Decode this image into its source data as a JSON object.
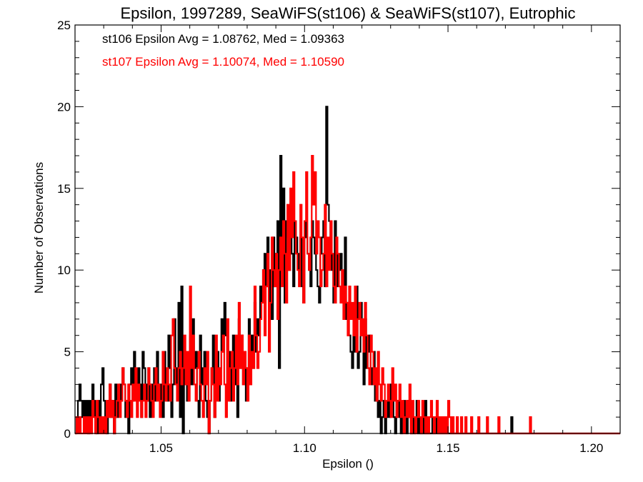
{
  "chart_data": {
    "type": "histogram-step",
    "title": "Epsilon, 1997289, SeaWiFS(st106) & SeaWiFS(st107), Eutrophic",
    "xlabel": "Epsilon ()",
    "ylabel": "Number of Observations",
    "xlim": [
      1.02,
      1.21
    ],
    "ylim": [
      0,
      25
    ],
    "xticks": [
      1.05,
      1.1,
      1.15,
      1.2
    ],
    "xtick_labels": [
      "1.05",
      "1.10",
      "1.15",
      "1.20"
    ],
    "yticks": [
      0,
      5,
      10,
      15,
      20,
      25
    ],
    "ytick_labels": [
      "0",
      "5",
      "10",
      "15",
      "20",
      "25"
    ],
    "grid": false,
    "legend_position": "top-left",
    "bin_start": 1.02,
    "bin_width": 0.0005,
    "series": [
      {
        "name": "st106",
        "label": "st106 Epsilon Avg = 1.08762, Med = 1.09363",
        "color": "#000000",
        "values": [
          0,
          1,
          2,
          3,
          2,
          1,
          2,
          1,
          2,
          0,
          2,
          1,
          3,
          2,
          1,
          0,
          2,
          1,
          3,
          4,
          2,
          1,
          0,
          2,
          3,
          1,
          2,
          0,
          3,
          1,
          2,
          3,
          2,
          4,
          3,
          1,
          2,
          0,
          3,
          4,
          2,
          5,
          3,
          2,
          4,
          3,
          1,
          5,
          4,
          3,
          2,
          4,
          1,
          3,
          2,
          4,
          2,
          5,
          3,
          2,
          3,
          1,
          5,
          3,
          2,
          6,
          4,
          1,
          3,
          7,
          4,
          3,
          8,
          1,
          9,
          0,
          4,
          5,
          2,
          3,
          6,
          3,
          7,
          4,
          5,
          2,
          1,
          6,
          3,
          4,
          5,
          2,
          1,
          0,
          2,
          4,
          6,
          1,
          3,
          5,
          2,
          4,
          7,
          5,
          8,
          6,
          3,
          5,
          2,
          4,
          6,
          3,
          5,
          1,
          7,
          4,
          6,
          3,
          5,
          2,
          4,
          7,
          5,
          6,
          4,
          8,
          5,
          7,
          6,
          9,
          8,
          10,
          11,
          9,
          12,
          8,
          10,
          7,
          12,
          9,
          11,
          13,
          4,
          17,
          10,
          15,
          8,
          13,
          12,
          10,
          14,
          11,
          9,
          13,
          12,
          11,
          10,
          12,
          9,
          8,
          13,
          12,
          11,
          10,
          9,
          13,
          12,
          11,
          10,
          9,
          8,
          11,
          12,
          13,
          9,
          20,
          14,
          13,
          12,
          10,
          8,
          13,
          11,
          9,
          10,
          11,
          8,
          9,
          12,
          7,
          8,
          6,
          5,
          4,
          6,
          5,
          9,
          4,
          5,
          8,
          6,
          3,
          7,
          4,
          5,
          6,
          3,
          4,
          5,
          2,
          3,
          1,
          2,
          0,
          1,
          2,
          0,
          1,
          2,
          1,
          3,
          2,
          1,
          0,
          2,
          1,
          2,
          0,
          1,
          2,
          1,
          0,
          2,
          1,
          0,
          1,
          0,
          1,
          2,
          0,
          1,
          0,
          1,
          0,
          2,
          0,
          1,
          0,
          0,
          1,
          0,
          1,
          0,
          0,
          1,
          0,
          0,
          0,
          0,
          0,
          0,
          0,
          0,
          0,
          0,
          0,
          0,
          0,
          0,
          0,
          0,
          0,
          0,
          0,
          0,
          0,
          0,
          0,
          0,
          0,
          0,
          0,
          0,
          0,
          0,
          0,
          0,
          0,
          0,
          0,
          0,
          0,
          0,
          0,
          0,
          0,
          0,
          0,
          0,
          0,
          0,
          0,
          0,
          0,
          1,
          0,
          0,
          0,
          0,
          0,
          0,
          0,
          0,
          0,
          0,
          0,
          0,
          0,
          0,
          0,
          0,
          0,
          0,
          0,
          0,
          0,
          0,
          0,
          0,
          0,
          0,
          0,
          0,
          0,
          0,
          0,
          0,
          0,
          0,
          0,
          0,
          0,
          0,
          0,
          0,
          0,
          0,
          0,
          0,
          0,
          0,
          0,
          0,
          0,
          0,
          0,
          0,
          0,
          0,
          0
        ]
      },
      {
        "name": "st107",
        "label": "st107 Epsilon Avg = 1.10074, Med = 1.10590",
        "color": "#ff0000",
        "values": [
          0,
          1,
          0,
          1,
          0,
          0,
          1,
          0,
          1,
          0,
          1,
          0,
          2,
          1,
          0,
          2,
          1,
          0,
          1,
          0,
          1,
          0,
          2,
          1,
          3,
          1,
          2,
          0,
          1,
          2,
          3,
          1,
          2,
          4,
          3,
          2,
          1,
          3,
          2,
          1,
          3,
          2,
          4,
          1,
          3,
          2,
          1,
          2,
          3,
          1,
          2,
          4,
          3,
          2,
          1,
          3,
          4,
          2,
          3,
          1,
          2,
          5,
          3,
          2,
          4,
          3,
          2,
          6,
          7,
          4,
          3,
          2,
          4,
          5,
          3,
          4,
          6,
          3,
          5,
          2,
          9,
          4,
          6,
          3,
          2,
          4,
          5,
          3,
          2,
          1,
          4,
          3,
          5,
          0,
          2,
          4,
          3,
          1,
          6,
          2,
          4,
          3,
          5,
          6,
          3,
          1,
          7,
          2,
          4,
          5,
          2,
          4,
          6,
          3,
          8,
          4,
          6,
          3,
          5,
          4,
          2,
          6,
          3,
          5,
          4,
          9,
          6,
          4,
          5,
          7,
          8,
          10,
          6,
          9,
          11,
          5,
          8,
          12,
          10,
          9,
          11,
          7,
          10,
          12,
          9,
          13,
          11,
          8,
          14,
          10,
          15,
          12,
          16,
          13,
          11,
          10,
          9,
          14,
          12,
          8,
          13,
          16,
          11,
          10,
          12,
          17,
          14,
          16,
          11,
          13,
          12,
          9,
          10,
          11,
          14,
          9,
          12,
          10,
          13,
          11,
          9,
          8,
          12,
          11,
          9,
          8,
          10,
          7,
          9,
          8,
          6,
          9,
          7,
          8,
          6,
          9,
          5,
          7,
          8,
          6,
          7,
          5,
          8,
          6,
          4,
          3,
          6,
          5,
          3,
          4,
          2,
          5,
          3,
          2,
          4,
          3,
          1,
          2,
          3,
          2,
          1,
          4,
          2,
          3,
          1,
          2,
          3,
          1,
          2,
          0,
          1,
          2,
          1,
          3,
          0,
          2,
          1,
          0,
          1,
          2,
          1,
          0,
          2,
          1,
          0,
          1,
          0,
          1,
          2,
          1,
          0,
          1,
          2,
          0,
          1,
          0,
          1,
          0,
          1,
          0,
          2,
          1,
          0,
          1,
          0,
          0,
          1,
          0,
          0,
          1,
          0,
          0,
          1,
          0,
          0,
          0,
          1,
          0,
          0,
          0,
          0,
          1,
          0,
          0,
          0,
          0,
          0,
          1,
          0,
          0,
          0,
          0,
          0,
          0,
          0,
          1,
          0,
          0,
          0,
          0,
          0,
          0,
          0,
          0,
          0,
          0,
          0,
          0,
          0,
          0,
          0,
          0,
          0,
          0,
          0,
          0,
          0,
          1,
          0,
          0,
          0,
          0,
          0,
          0,
          0,
          0,
          0,
          0,
          0,
          0,
          0,
          0,
          0,
          0,
          0,
          0,
          0,
          0,
          0,
          0,
          0,
          0,
          0,
          0,
          0,
          0,
          0,
          0,
          0,
          0,
          0,
          0,
          0,
          0,
          0,
          0,
          0,
          0,
          0,
          0,
          0,
          0,
          0,
          0,
          0,
          0,
          0
        ]
      }
    ]
  }
}
